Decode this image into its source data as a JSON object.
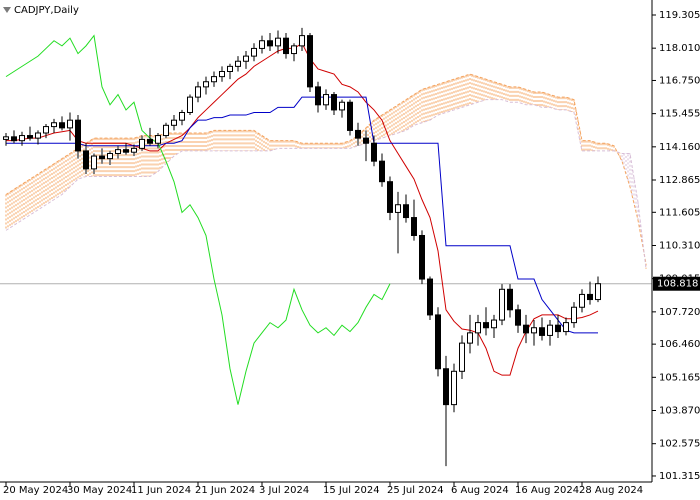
{
  "chart_data": {
    "type": "candlestick",
    "title": "CADJPY,Daily",
    "xlim": [
      -0.75,
      80.75
    ],
    "xticks": [
      {
        "value": 0,
        "label": "20 May 2024"
      },
      {
        "value": 8,
        "label": "30 May 2024"
      },
      {
        "value": 16,
        "label": "11 Jun 2024"
      },
      {
        "value": 24,
        "label": "21 Jun 2024"
      },
      {
        "value": 32,
        "label": "3 Jul 2024"
      },
      {
        "value": 40,
        "label": "15 Jul 2024"
      },
      {
        "value": 48,
        "label": "25 Jul 2024"
      },
      {
        "value": 56,
        "label": "6 Aug 2024"
      },
      {
        "value": 64,
        "label": "16 Aug 2024"
      },
      {
        "value": 72,
        "label": "28 Aug 2024"
      }
    ],
    "ylim": [
      101.08,
      119.89
    ],
    "yticks": [
      119.305,
      {
        "value": 118.01,
        "label": "118.010"
      },
      {
        "value": 116.75,
        "label": "116.750"
      },
      115.455,
      {
        "value": 114.16,
        "label": "114.160"
      },
      112.865,
      111.605,
      {
        "value": 110.31,
        "label": "110.310"
      },
      109.015,
      {
        "value": 107.72,
        "label": "107.720"
      },
      {
        "value": 106.46,
        "label": "106.460"
      },
      105.165,
      {
        "value": 103.87,
        "label": "103.870"
      },
      102.575,
      101.315
    ],
    "current_price": 108.818,
    "colors": {
      "up_body": "#ffffff",
      "down_body": "#000000",
      "wick": "#000000"
    },
    "ohlc": {
      "open": [
        114.45,
        114.55,
        114.4,
        114.6,
        114.5,
        114.7,
        114.95,
        115.1,
        114.9,
        115.2,
        114.0,
        113.3,
        113.8,
        113.7,
        113.9,
        114.05,
        113.95,
        114.1,
        114.45,
        114.3,
        114.6,
        115.0,
        115.2,
        115.5,
        116.1,
        116.5,
        116.7,
        116.9,
        117.1,
        117.3,
        117.5,
        117.7,
        118.0,
        118.3,
        118.1,
        118.4,
        117.8,
        118.1,
        118.5,
        116.5,
        115.8,
        116.2,
        115.6,
        115.9,
        114.8,
        114.5,
        114.3,
        113.6,
        112.8,
        111.6,
        111.9,
        111.4,
        110.7,
        109.0,
        107.6,
        105.5,
        104.1,
        105.4,
        106.5,
        106.9,
        107.3,
        107.1,
        107.4,
        108.6,
        107.8,
        107.2,
        106.9,
        107.1,
        106.8,
        107.2,
        106.95,
        107.3,
        107.9,
        108.4,
        108.2
      ],
      "high": [
        114.7,
        114.8,
        114.75,
        114.95,
        114.8,
        115.05,
        115.25,
        115.35,
        115.5,
        115.4,
        114.3,
        113.9,
        114.1,
        114.0,
        114.2,
        114.3,
        114.25,
        114.6,
        114.9,
        114.7,
        115.1,
        115.4,
        115.6,
        116.2,
        116.7,
        116.9,
        117.1,
        117.3,
        117.4,
        117.7,
        117.9,
        118.2,
        118.5,
        118.6,
        118.7,
        118.6,
        118.2,
        118.8,
        118.6,
        116.7,
        116.4,
        116.3,
        116.0,
        116.0,
        115.1,
        114.8,
        114.6,
        113.9,
        113.0,
        112.4,
        112.3,
        112.1,
        110.9,
        109.1,
        107.9,
        106.0,
        105.7,
        106.8,
        107.6,
        107.6,
        107.9,
        107.6,
        108.8,
        108.8,
        108.0,
        107.6,
        107.4,
        107.5,
        107.4,
        107.6,
        107.5,
        108.1,
        108.6,
        108.9,
        109.1
      ],
      "low": [
        114.2,
        114.3,
        114.2,
        114.4,
        114.25,
        114.5,
        114.7,
        114.8,
        114.4,
        113.7,
        113.1,
        113.1,
        113.5,
        113.45,
        113.7,
        113.85,
        113.8,
        114.0,
        114.2,
        114.1,
        114.5,
        114.8,
        115.0,
        115.4,
        115.9,
        116.2,
        116.5,
        116.7,
        116.8,
        117.1,
        117.2,
        117.5,
        117.8,
        117.9,
        117.8,
        117.6,
        117.5,
        117.9,
        116.3,
        115.5,
        115.6,
        115.4,
        115.3,
        114.6,
        114.2,
        113.6,
        113.4,
        112.6,
        111.3,
        110.0,
        111.2,
        110.5,
        108.8,
        107.4,
        105.2,
        101.7,
        103.8,
        105.1,
        106.1,
        106.4,
        106.8,
        106.7,
        107.2,
        107.5,
        106.9,
        106.5,
        106.4,
        106.6,
        106.4,
        106.7,
        106.8,
        107.1,
        107.7,
        108.0,
        108.1
      ],
      "close": [
        114.55,
        114.4,
        114.6,
        114.5,
        114.7,
        114.95,
        115.1,
        114.9,
        115.2,
        114.0,
        113.3,
        113.8,
        113.7,
        113.9,
        114.05,
        113.95,
        114.1,
        114.45,
        114.3,
        114.6,
        115.0,
        115.2,
        115.5,
        116.1,
        116.5,
        116.7,
        116.9,
        117.1,
        117.3,
        117.5,
        117.7,
        118.0,
        118.3,
        118.1,
        118.4,
        117.8,
        118.1,
        118.5,
        116.5,
        115.8,
        116.2,
        115.6,
        115.9,
        114.8,
        114.5,
        114.3,
        113.6,
        112.8,
        111.6,
        111.9,
        111.4,
        110.7,
        109.0,
        107.6,
        105.5,
        104.1,
        105.4,
        106.5,
        106.9,
        107.3,
        107.1,
        107.4,
        108.6,
        107.8,
        107.2,
        106.9,
        107.1,
        106.8,
        107.2,
        106.95,
        107.3,
        107.9,
        108.4,
        108.2,
        108.818
      ]
    },
    "lines": [
      {
        "color": "#d00000",
        "values": [
          114.4,
          114.4,
          114.45,
          114.5,
          114.5,
          114.6,
          114.7,
          114.75,
          114.8,
          114.4,
          114.3,
          114.3,
          114.3,
          114.3,
          114.3,
          114.3,
          114.2,
          114.1,
          114.0,
          114.0,
          114.3,
          114.45,
          114.6,
          114.9,
          115.3,
          115.6,
          115.9,
          116.2,
          116.5,
          116.8,
          117.0,
          117.3,
          117.5,
          117.7,
          117.9,
          118.0,
          118.0,
          118.2,
          117.6,
          117.2,
          117.1,
          117.0,
          116.6,
          116.5,
          116.3,
          115.9,
          115.6,
          115.2,
          114.4,
          113.9,
          113.4,
          112.9,
          112.1,
          111.4,
          110.1,
          107.8,
          107.35,
          107.05,
          107.0,
          106.9,
          106.3,
          105.4,
          105.25,
          105.25,
          106.3,
          106.95,
          107.45,
          107.6,
          107.6,
          107.6,
          107.45,
          107.45,
          107.5,
          107.6,
          107.75
        ]
      },
      {
        "color": "#0000c8",
        "values": [
          114.3,
          114.3,
          114.3,
          114.3,
          114.3,
          114.3,
          114.3,
          114.3,
          114.3,
          114.3,
          114.2,
          114.2,
          114.2,
          114.2,
          114.2,
          114.2,
          114.2,
          114.2,
          114.2,
          114.2,
          114.3,
          114.3,
          114.4,
          114.9,
          115.2,
          115.2,
          115.3,
          115.3,
          115.4,
          115.4,
          115.4,
          115.5,
          115.5,
          115.5,
          115.7,
          115.7,
          115.7,
          116.1,
          116.1,
          116.1,
          116.1,
          116.1,
          116.1,
          116.1,
          116.1,
          116.1,
          114.3,
          114.3,
          114.3,
          114.3,
          114.3,
          114.3,
          114.3,
          114.3,
          114.3,
          110.3,
          110.3,
          110.3,
          110.3,
          110.3,
          110.3,
          110.3,
          110.3,
          110.3,
          109.0,
          109.0,
          109.0,
          108.2,
          107.8,
          107.4,
          107.0,
          106.9,
          106.9,
          106.9,
          106.9
        ]
      },
      {
        "color": "#22dd22",
        "values": [
          116.9,
          117.1,
          117.3,
          117.5,
          117.7,
          118.0,
          118.3,
          118.1,
          118.4,
          117.8,
          118.1,
          118.5,
          116.5,
          115.8,
          116.2,
          115.6,
          115.9,
          114.8,
          114.5,
          114.3,
          113.6,
          112.8,
          111.6,
          111.9,
          111.4,
          110.7,
          109.0,
          107.6,
          105.5,
          104.1,
          105.4,
          106.5,
          106.9,
          107.3,
          107.1,
          107.4,
          108.6,
          107.8,
          107.2,
          106.9,
          107.1,
          106.8,
          107.2,
          106.95,
          107.3,
          107.9,
          108.4,
          108.2,
          108.818,
          null,
          null,
          null,
          null,
          null,
          null,
          null,
          null,
          null,
          null,
          null,
          null,
          null,
          null,
          null,
          null,
          null,
          null,
          null,
          null,
          null,
          null,
          null,
          null,
          null,
          null
        ]
      }
    ],
    "cloud": {
      "colors": [
        "#f4a460",
        "#d8bfd8"
      ],
      "span_a": [
        112.3,
        112.5,
        112.7,
        112.9,
        113.1,
        113.3,
        113.5,
        113.7,
        113.9,
        114.1,
        114.3,
        114.5,
        114.5,
        114.5,
        114.5,
        114.5,
        114.5,
        114.6,
        114.6,
        114.6,
        114.7,
        114.7,
        114.7,
        114.7,
        114.7,
        114.7,
        114.8,
        114.8,
        114.8,
        114.8,
        114.8,
        114.8,
        114.6,
        114.4,
        114.4,
        114.4,
        114.4,
        114.3,
        114.3,
        114.3,
        114.3,
        114.3,
        114.3,
        114.4,
        114.6,
        114.9,
        115.2,
        115.4,
        115.6,
        115.8,
        116.0,
        116.2,
        116.4,
        116.5,
        116.6,
        116.7,
        116.8,
        116.9,
        117.0,
        116.9,
        116.8,
        116.7,
        116.6,
        116.5,
        116.5,
        116.4,
        116.3,
        116.3,
        116.2,
        116.1,
        116.1,
        116.0,
        114.4,
        114.4,
        114.3,
        114.3,
        114.2,
        113.6,
        112.6,
        111.3,
        109.6
      ],
      "span_b": [
        110.9,
        111.1,
        111.3,
        111.5,
        111.7,
        111.9,
        112.1,
        112.3,
        112.6,
        112.9,
        113.0,
        113.0,
        113.0,
        113.0,
        113.0,
        113.0,
        113.0,
        113.0,
        113.0,
        113.2,
        113.5,
        113.8,
        114.0,
        114.0,
        114.0,
        114.0,
        114.0,
        114.0,
        114.0,
        114.0,
        114.0,
        114.0,
        114.0,
        114.0,
        114.1,
        114.1,
        114.1,
        114.1,
        114.1,
        114.1,
        114.1,
        114.1,
        114.1,
        114.1,
        114.2,
        114.3,
        114.4,
        114.5,
        114.6,
        114.7,
        114.8,
        115.0,
        115.1,
        115.2,
        115.4,
        115.5,
        115.6,
        115.7,
        115.8,
        115.9,
        116.0,
        116.0,
        116.0,
        115.9,
        115.9,
        115.8,
        115.8,
        115.7,
        115.7,
        115.6,
        115.6,
        115.5,
        114.0,
        114.0,
        114.0,
        114.0,
        114.0,
        113.9,
        113.9,
        112.0,
        109.4
      ]
    }
  }
}
